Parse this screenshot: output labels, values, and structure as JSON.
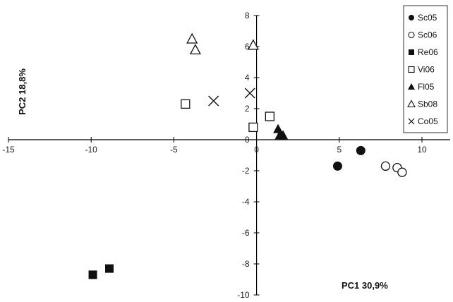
{
  "chart_data": {
    "type": "scatter",
    "xlabel": "PC1 30,9%",
    "ylabel": "PC2 18,8%",
    "xlim": [
      -15,
      10
    ],
    "ylim": [
      -10,
      8
    ],
    "x_ticks": [
      "-15",
      "-10",
      "-5",
      "0",
      "5",
      "10"
    ],
    "y_ticks": [
      "8",
      "6",
      "4",
      "2",
      "0",
      "-2",
      "-4",
      "-6",
      "-8",
      "-10"
    ],
    "x_tick_values": [
      -15,
      -10,
      -5,
      0,
      5,
      10
    ],
    "y_tick_values": [
      8,
      6,
      4,
      2,
      0,
      -2,
      -4,
      -6,
      -8,
      -10
    ],
    "grid": false,
    "legend_position": "top-right",
    "series": [
      {
        "name": "Sc05",
        "marker": "filled-circle",
        "points": [
          [
            4.9,
            -1.7
          ],
          [
            6.3,
            -0.7
          ]
        ]
      },
      {
        "name": "Sc06",
        "marker": "open-circle",
        "points": [
          [
            7.8,
            -1.7
          ],
          [
            8.5,
            -1.8
          ],
          [
            8.8,
            -2.1
          ]
        ]
      },
      {
        "name": "Re06",
        "marker": "filled-square",
        "points": [
          [
            -9.9,
            -8.7
          ],
          [
            -8.9,
            -8.3
          ]
        ]
      },
      {
        "name": "Vi06",
        "marker": "open-square",
        "points": [
          [
            -4.3,
            2.3
          ],
          [
            0.8,
            1.5
          ],
          [
            -0.2,
            0.8
          ]
        ]
      },
      {
        "name": "Fl05",
        "marker": "filled-triangle",
        "points": [
          [
            1.3,
            0.7
          ],
          [
            1.6,
            0.3
          ],
          [
            1.4,
            0.3
          ]
        ]
      },
      {
        "name": "Sb08",
        "marker": "open-triangle",
        "points": [
          [
            -3.9,
            6.5
          ],
          [
            -3.7,
            5.8
          ],
          [
            -0.2,
            6.1
          ]
        ]
      },
      {
        "name": "Co05",
        "marker": "cross",
        "points": [
          [
            -2.6,
            2.5
          ],
          [
            -0.4,
            3.0
          ]
        ]
      }
    ]
  }
}
